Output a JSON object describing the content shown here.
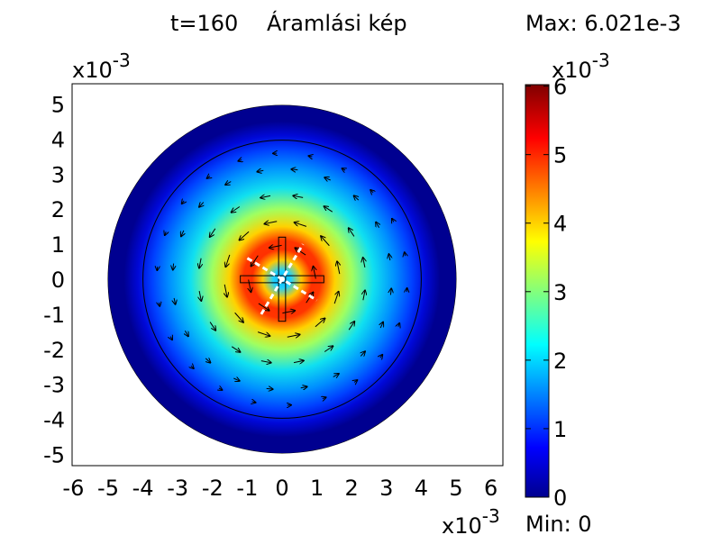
{
  "chart_data": {
    "type": "heatmap",
    "time_label": "t=160",
    "title": "Áramlási kép",
    "max_label": "Max: 6.021e-3",
    "min_label": "Min: 0",
    "x_multiplier": "x10",
    "x_multiplier_exp": "-3",
    "y_multiplier": "x10",
    "y_multiplier_exp": "-3",
    "xlim": [
      -6.3,
      6.3
    ],
    "ylim": [
      -5.5,
      5.5
    ],
    "xticks": [
      -6,
      -5,
      -4,
      -3,
      -2,
      -1,
      0,
      1,
      2,
      3,
      4,
      5,
      6
    ],
    "yticks": [
      5,
      4,
      3,
      2,
      1,
      0,
      -1,
      -2,
      -3,
      -4,
      -5
    ],
    "outer_radius": 5.0,
    "inner_radius": 4.0,
    "peak_radius": 1.1,
    "max_value": 6.021,
    "colorbar": {
      "multiplier": "x10",
      "multiplier_exp": "-3",
      "range": [
        0,
        6.021
      ],
      "ticks": [
        0,
        1,
        2,
        3,
        4,
        5,
        6
      ]
    },
    "colormap": [
      "#00008f",
      "#0000ff",
      "#00ffff",
      "#ffff00",
      "#ff0000",
      "#800000"
    ]
  }
}
